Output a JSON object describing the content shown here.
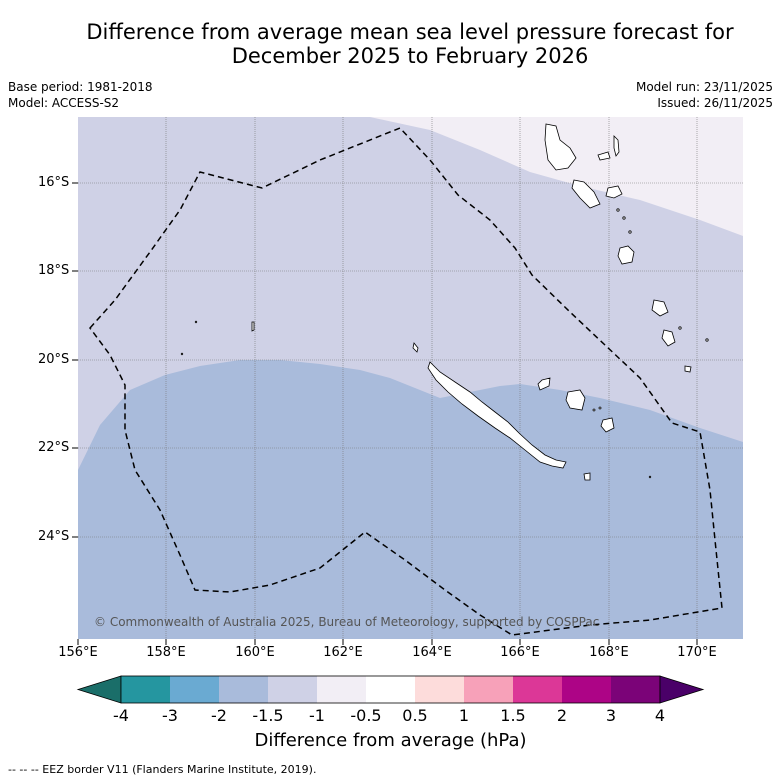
{
  "title_line1": "Difference from average mean sea level pressure forecast for",
  "title_line2": "December 2025 to February 2026",
  "base_period": "Base period: 1981-2018",
  "model": "Model: ACCESS-S2",
  "model_run": "Model run: 23/11/2025",
  "issued": "Issued: 26/11/2025",
  "lat_labels": [
    "16°S",
    "18°S",
    "20°S",
    "22°S",
    "24°S"
  ],
  "lon_labels": [
    "156°E",
    "158°E",
    "160°E",
    "162°E",
    "164°E",
    "166°E",
    "168°E",
    "170°E"
  ],
  "copyright": "© Commonwealth of Australia 2025, Bureau of Meteorology, supported by COSPPac",
  "colorbar": {
    "labels": [
      "-4",
      "-3",
      "-2",
      "-1.5",
      "-1",
      "-0.5",
      "0.5",
      "1",
      "1.5",
      "2",
      "3",
      "4"
    ],
    "colors": [
      "#1a6e69",
      "#2596a0",
      "#6aaad2",
      "#a9bbdb",
      "#cfd1e6",
      "#f2eef5",
      "#ffffff",
      "#fddcdb",
      "#f7a1b9",
      "#dc3797",
      "#ad0486",
      "#7b0378",
      "#4a0068"
    ],
    "title": "Difference from average (hPa)"
  },
  "legend": {
    "colors": {
      "deep": "#a9bbdb",
      "mid": "#cfd1e6",
      "light": "#f2eef5"
    }
  },
  "footer": "--  --  -- EEZ border V11 (Flanders Marine Institute, 2019)."
}
